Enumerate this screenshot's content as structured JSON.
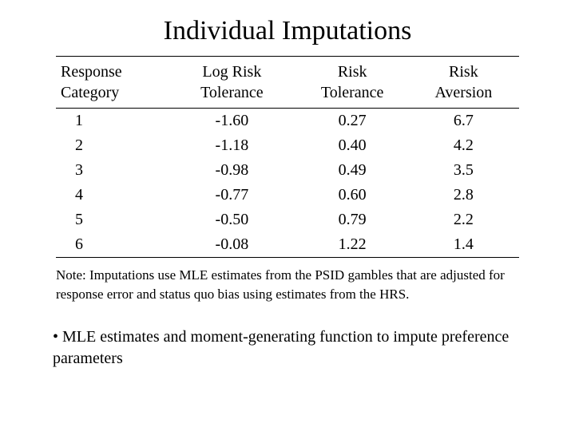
{
  "title": "Individual Imputations",
  "table": {
    "columns": [
      {
        "line1": "Response",
        "line2": "Category"
      },
      {
        "line1": "Log Risk",
        "line2": "Tolerance"
      },
      {
        "line1": "Risk",
        "line2": "Tolerance"
      },
      {
        "line1": "Risk",
        "line2": "Aversion"
      }
    ],
    "rows": [
      {
        "cat": "1",
        "log": "-1.60",
        "tol": "0.27",
        "avers": "6.7"
      },
      {
        "cat": "2",
        "log": "-1.18",
        "tol": "0.40",
        "avers": "4.2"
      },
      {
        "cat": "3",
        "log": "-0.98",
        "tol": "0.49",
        "avers": "3.5"
      },
      {
        "cat": "4",
        "log": "-0.77",
        "tol": "0.60",
        "avers": "2.8"
      },
      {
        "cat": "5",
        "log": "-0.50",
        "tol": "0.79",
        "avers": "2.2"
      },
      {
        "cat": "6",
        "log": "-0.08",
        "tol": "1.22",
        "avers": "1.4"
      }
    ]
  },
  "note": "Note: Imputations use MLE estimates from the PSID gambles that are adjusted for response error and status quo bias using estimates from the HRS.",
  "bullet": "• MLE estimates and moment-generating function to impute preference parameters"
}
